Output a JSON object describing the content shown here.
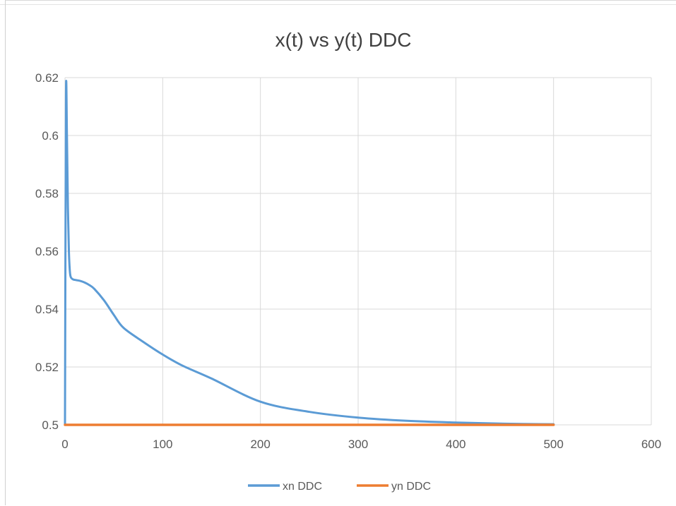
{
  "colors": {
    "xn": "#5b9bd5",
    "yn": "#ed7d31",
    "grid": "#d9d9d9",
    "text": "#595959"
  },
  "chart_data": {
    "type": "scatter",
    "title": "x(t) vs y(t) DDC",
    "xlabel": "",
    "ylabel": "",
    "xlim": [
      0,
      600
    ],
    "ylim": [
      0.5,
      0.62
    ],
    "x_ticks": [
      "0",
      "100",
      "200",
      "300",
      "400",
      "500",
      "600"
    ],
    "y_ticks": [
      "0.5",
      "0.52",
      "0.54",
      "0.56",
      "0.58",
      "0.6",
      "0.62"
    ],
    "x_tick_values": [
      0,
      100,
      200,
      300,
      400,
      500,
      600
    ],
    "y_tick_values": [
      0.5,
      0.52,
      0.54,
      0.56,
      0.58,
      0.6,
      0.62
    ],
    "grid": true,
    "legend": "bottom",
    "lines_smooth": true,
    "series": [
      {
        "name": "xn DDC",
        "color": "#5b9bd5",
        "x": [
          0,
          1,
          2,
          3,
          4,
          5,
          6,
          8,
          10,
          15,
          20,
          25,
          30,
          40,
          50,
          60,
          80,
          100,
          120,
          150,
          200,
          250,
          300,
          350,
          400,
          450,
          500
        ],
        "y": [
          0.5,
          0.613,
          0.6,
          0.575,
          0.56,
          0.553,
          0.551,
          0.5503,
          0.5501,
          0.5498,
          0.5492,
          0.5483,
          0.547,
          0.543,
          0.538,
          0.5335,
          0.5287,
          0.5243,
          0.5205,
          0.516,
          0.508,
          0.5045,
          0.5025,
          0.5014,
          0.5008,
          0.5004,
          0.5002
        ]
      },
      {
        "name": "yn DDC",
        "color": "#ed7d31",
        "x": [
          0,
          500
        ],
        "y": [
          0.5,
          0.5
        ]
      }
    ]
  }
}
